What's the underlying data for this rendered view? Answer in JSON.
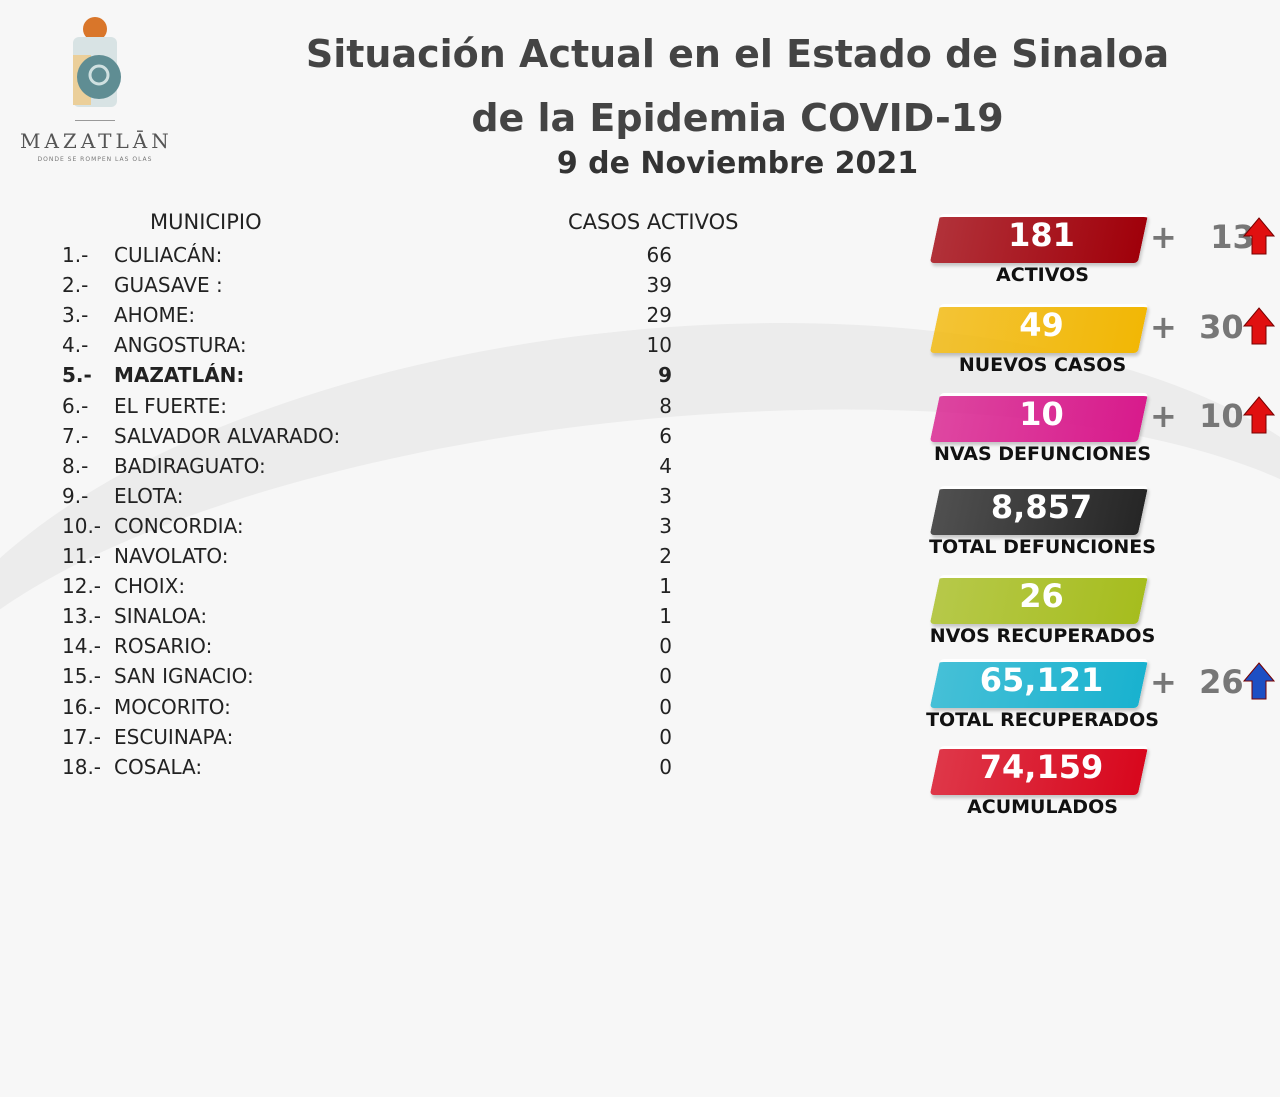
{
  "logo": {
    "name": "MAZATLĀN",
    "tagline": "DONDE SE ROMPEN LAS OLAS"
  },
  "title": {
    "line1": "Situación Actual en el Estado de Sinaloa",
    "line2": "de la Epidemia COVID-19",
    "date": "9 de Noviembre 2021"
  },
  "table": {
    "headers": {
      "municipio": "MUNICIPIO",
      "casos": "CASOS ACTIVOS"
    },
    "rows": [
      {
        "n": "1.-",
        "m": "CULIACÁN:",
        "v": "66"
      },
      {
        "n": "2.-",
        "m": "GUASAVE :",
        "v": "39"
      },
      {
        "n": "3.-",
        "m": "AHOME:",
        "v": "29"
      },
      {
        "n": "4.-",
        "m": "ANGOSTURA:",
        "v": "10"
      },
      {
        "n": "5.-",
        "m": "MAZATLÁN:",
        "v": "9"
      },
      {
        "n": "6.-",
        "m": "EL FUERTE:",
        "v": "8"
      },
      {
        "n": "7.-",
        "m": "SALVADOR ALVARADO:",
        "v": "6"
      },
      {
        "n": "8.-",
        "m": "BADIRAGUATO:",
        "v": "4"
      },
      {
        "n": "9.-",
        "m": "ELOTA:",
        "v": "3"
      },
      {
        "n": "10.-",
        "m": "CONCORDIA:",
        "v": "3"
      },
      {
        "n": "11.-",
        "m": "NAVOLATO:",
        "v": "2"
      },
      {
        "n": "12.-",
        "m": "CHOIX:",
        "v": "1"
      },
      {
        "n": "13.-",
        "m": "SINALOA:",
        "v": "1"
      },
      {
        "n": "14.-",
        "m": "ROSARIO:",
        "v": "0"
      },
      {
        "n": "15.-",
        "m": "SAN IGNACIO:",
        "v": "0"
      },
      {
        "n": "16.-",
        "m": "MOCORITO:",
        "v": "0"
      },
      {
        "n": "17.-",
        "m": "ESCUINAPA:",
        "v": "0"
      },
      {
        "n": "18.-",
        "m": "COSALA:",
        "v": "0"
      }
    ]
  },
  "cards": [
    {
      "value": "181",
      "label": "ACTIVOS",
      "delta": "+   13",
      "color": "#a0000a",
      "arrow": "up-red"
    },
    {
      "value": "49",
      "label": "NUEVOS CASOS",
      "delta": "+  30",
      "color": "#f2b705",
      "arrow": "up-red"
    },
    {
      "value": "10",
      "label": "NVAS DEFUNCIONES",
      "delta": "+  10",
      "color": "#d81b8c",
      "arrow": "up-red"
    },
    {
      "value": "8,857",
      "label": "TOTAL DEFUNCIONES",
      "color": "#262626"
    },
    {
      "value": "26",
      "label": "NVOS RECUPERADOS",
      "color": "#a6bd1e"
    },
    {
      "value": "65,121",
      "label": "TOTAL RECUPERADOS",
      "delta": "+  26",
      "color": "#19b2cf",
      "arrow": "up-blue"
    },
    {
      "value": "74,159",
      "label": "ACUMULADOS",
      "color": "#d8071d"
    }
  ]
}
